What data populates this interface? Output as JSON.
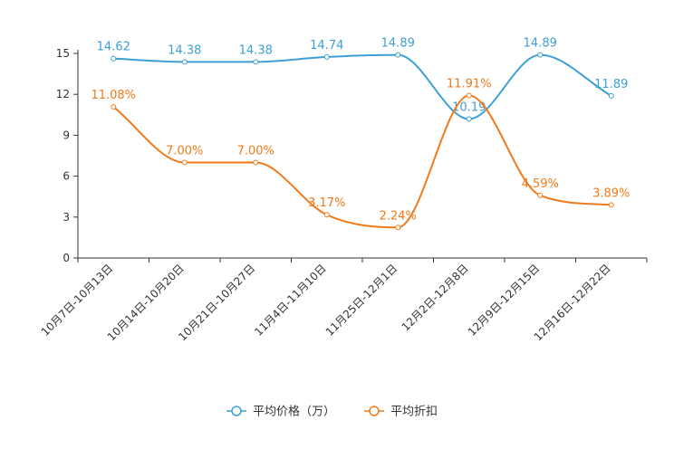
{
  "chart_data": {
    "type": "line",
    "title": "",
    "xlabel": "",
    "ylabel": "",
    "categories": [
      "10月7日-10月13日",
      "10月14日-10月20日",
      "10月21日-10月27日",
      "11月4日-11月10日",
      "11月25日-12月1日",
      "12月2日-12月8日",
      "12月9日-12月15日",
      "12月16日-12月22日"
    ],
    "ylim": [
      0,
      15
    ],
    "yticks": [
      "0",
      "3",
      "6",
      "9",
      "12",
      "15"
    ],
    "grid": false,
    "legend_position": "bottom-center",
    "series": [
      {
        "name": "平均价格（万）",
        "color": "#3d9fd3",
        "values": [
          14.62,
          14.38,
          14.38,
          14.74,
          14.89,
          10.19,
          14.89,
          11.89
        ],
        "labels": [
          "14.62",
          "14.38",
          "14.38",
          "14.74",
          "14.89",
          "10.19",
          "14.89",
          "11.89"
        ]
      },
      {
        "name": "平均折扣",
        "color": "#f07a1a",
        "values": [
          11.08,
          7.0,
          7.0,
          3.17,
          2.24,
          11.91,
          4.59,
          3.89
        ],
        "labels": [
          "11.08%",
          "7.00%",
          "7.00%",
          "3.17%",
          "2.24%",
          "11.91%",
          "4.59%",
          "3.89%"
        ]
      }
    ]
  }
}
